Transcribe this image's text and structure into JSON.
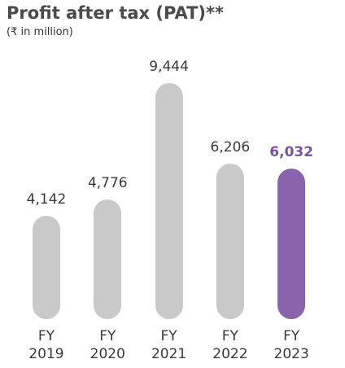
{
  "chart_data": {
    "type": "bar",
    "title": "Profit after tax (PAT)**",
    "subtitle": "(₹ in million)",
    "categories": [
      "FY 2019",
      "FY 2020",
      "FY 2021",
      "FY 2022",
      "FY 2023"
    ],
    "values": [
      4142,
      4776,
      9444,
      6206,
      6032
    ],
    "value_labels": [
      "4,142",
      "4,776",
      "9,444",
      "6,206",
      "6,032"
    ],
    "colors": [
      "#c9c9c9",
      "#c9c9c9",
      "#c9c9c9",
      "#c9c9c9",
      "#8a63ad"
    ],
    "label_colors": [
      "#3a3a3a",
      "#3a3a3a",
      "#3a3a3a",
      "#3a3a3a",
      "#7b52a3"
    ]
  }
}
